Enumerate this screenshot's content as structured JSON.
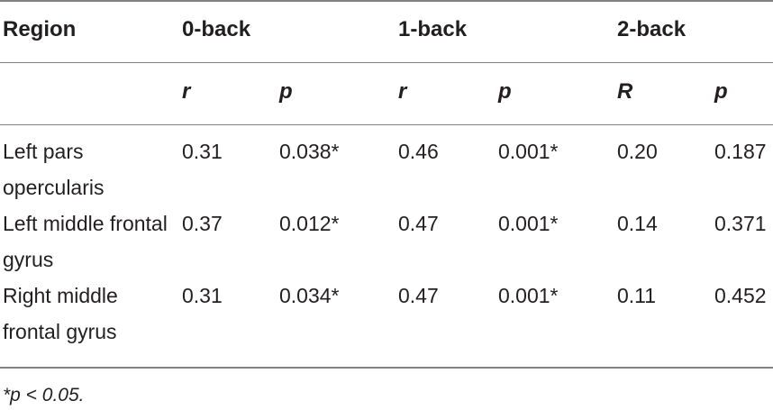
{
  "table": {
    "headers": {
      "region": "Region",
      "group1": "0-back",
      "group2": "1-back",
      "group3": "2-back"
    },
    "subheaders": [
      "r",
      "p",
      "r",
      "p",
      "R",
      "p"
    ],
    "rows": [
      {
        "region": "Left pars opercularis",
        "values": [
          "0.31",
          "0.038*",
          "0.46",
          "0.001*",
          "0.20",
          "0.187"
        ]
      },
      {
        "region": "Left middle frontal gyrus",
        "values": [
          "0.37",
          "0.012*",
          "0.47",
          "0.001*",
          "0.14",
          "0.371"
        ]
      },
      {
        "region": "Right middle frontal gyrus",
        "values": [
          "0.31",
          "0.034*",
          "0.47",
          "0.001*",
          "0.11",
          "0.452"
        ]
      }
    ],
    "footnote": "*p < 0.05."
  }
}
